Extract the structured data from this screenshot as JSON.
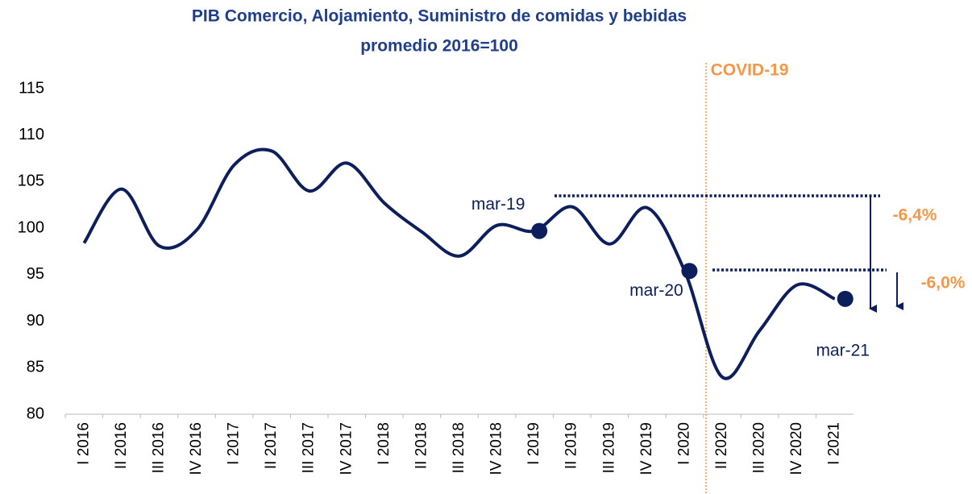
{
  "chart_data": {
    "type": "line",
    "title": "PIB Comercio, Alojamiento, Suministro de comidas y bebidas",
    "subtitle": "promedio 2016=100",
    "categories": [
      "I 2016",
      "II 2016",
      "III 2016",
      "IV 2016",
      "I 2017",
      "II 2017",
      "III 2017",
      "IV 2017",
      "I 2018",
      "II 2018",
      "III 2018",
      "IV 2018",
      "I 2019",
      "II 2019",
      "III 2019",
      "IV 2019",
      "I 2020",
      "II 2020",
      "III 2020",
      "IV 2020",
      "I 2021"
    ],
    "series": [
      {
        "name": "PIB",
        "color": "#0c1f5c",
        "values": [
          98.4,
          104.2,
          98.1,
          99.8,
          106.8,
          108.3,
          104.0,
          107.0,
          102.7,
          99.6,
          97.0,
          100.3,
          99.7,
          102.3,
          98.3,
          102.2,
          95.4,
          84.0,
          89.0,
          93.9,
          92.4
        ]
      }
    ],
    "point_labels": [
      "mar-19",
      "mar-20",
      "mar-21"
    ],
    "annotations": [
      "COVID-19",
      "-6,4%",
      "-6,0%"
    ],
    "ylim": [
      80,
      115
    ],
    "yticks": [
      80,
      85,
      90,
      95,
      100,
      105,
      110,
      115
    ],
    "grid": false
  }
}
